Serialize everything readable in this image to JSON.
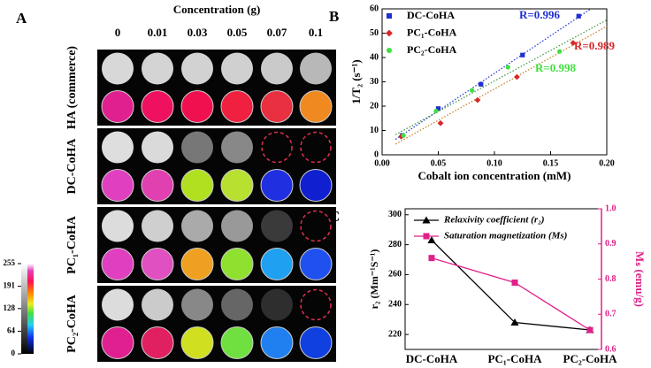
{
  "panel_a": {
    "label": "A",
    "title": "Concentration (g)",
    "columns": [
      "0",
      "0.01",
      "0.03",
      "0.05",
      "0.07",
      "0.1"
    ],
    "groups": [
      "HA (commerce)",
      "DC-CoHA",
      "PC₁-CoHA",
      "PC₂-CoHA"
    ],
    "colorbar": {
      "lim": [
        0,
        255
      ],
      "ticks": [
        0,
        64,
        128,
        191,
        255
      ]
    }
  },
  "chart_data": [
    {
      "type": "scatter",
      "label": "B",
      "x_label": "Cobalt ion concentration (mM)",
      "y_label": "1/T₂ (s⁻¹)",
      "xlim": [
        0,
        0.2
      ],
      "ylim": [
        0,
        60
      ],
      "xticks": [
        {
          "value": 0,
          "label": "0.00"
        },
        {
          "value": 0.05,
          "label": "0.05"
        },
        {
          "value": 0.1,
          "label": "0.10"
        },
        {
          "value": 0.15,
          "label": "0.15"
        },
        {
          "value": 0.2,
          "label": "0.20"
        }
      ],
      "yticks": [
        0,
        10,
        20,
        30,
        40,
        50,
        60
      ],
      "series": [
        {
          "name": "DC-CoHA",
          "color": "#1f2fd0",
          "marker": "square",
          "annotation": "R=0.996",
          "fit_color": "#2a3fd6",
          "x": [
            0.018,
            0.05,
            0.088,
            0.125,
            0.175
          ],
          "values": [
            8,
            19,
            29,
            41,
            57
          ]
        },
        {
          "name": "PC₁-CoHA",
          "color": "#d8262b",
          "marker": "diamond",
          "annotation": "R=0.989",
          "fit_color": "#c8842a",
          "x": [
            0.017,
            0.052,
            0.085,
            0.12,
            0.17
          ],
          "values": [
            7.5,
            13,
            22.5,
            32,
            46
          ]
        },
        {
          "name": "PC₂-CoHA",
          "color": "#3fe03f",
          "marker": "circle",
          "annotation": "R=0.998",
          "fit_color": "#4a9a4a",
          "x": [
            0.019,
            0.048,
            0.08,
            0.112,
            0.158
          ],
          "values": [
            8,
            18,
            26.5,
            36,
            42.5
          ]
        }
      ]
    },
    {
      "type": "line",
      "label": "C",
      "y_label": "r₂ (Mm⁻¹S⁻¹)",
      "y2_label": "Mₛ (emu/g)",
      "categories": [
        "DC-CoHA",
        "PC₁-CoHA",
        "PC₂-CoHA"
      ],
      "ylim": [
        210,
        304
      ],
      "yticks": [
        220,
        240,
        260,
        280,
        300
      ],
      "y2lim": [
        0.6,
        1.0
      ],
      "y2ticks": [
        0.6,
        0.7,
        0.8,
        0.9,
        {
          "value": 1.0,
          "label": "1.0"
        }
      ],
      "y2_color": "#e0208a",
      "series": [
        {
          "name": "Relaxivity coefficient (r₂)",
          "color": "#000000",
          "marker": "triangle",
          "values": [
            283,
            228,
            223
          ]
        },
        {
          "name": "Saturation magnetization (Ms)",
          "color": "#e0208a",
          "marker": "square",
          "axis": "y2",
          "values": [
            0.86,
            0.79,
            0.655
          ]
        }
      ]
    }
  ]
}
